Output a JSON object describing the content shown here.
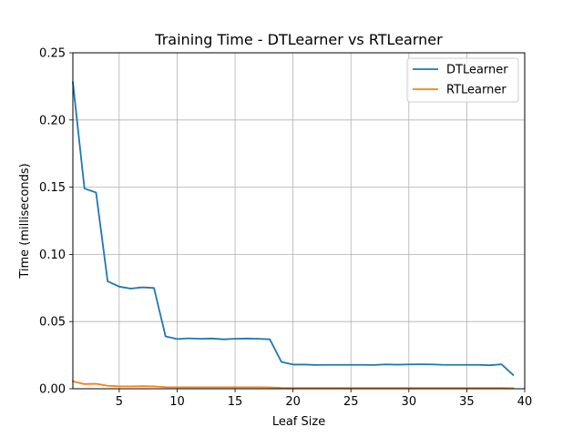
{
  "chart_data": {
    "type": "line",
    "title": "Training Time - DTLearner vs RTLearner",
    "xlabel": "Leaf Size",
    "ylabel": "Time (milliseconds)",
    "xlim": [
      1,
      40
    ],
    "ylim": [
      0,
      0.25
    ],
    "xticks": [
      5,
      10,
      15,
      20,
      25,
      30,
      35,
      40
    ],
    "yticks": [
      0.0,
      0.05,
      0.1,
      0.15,
      0.2,
      0.25
    ],
    "xtick_labels": [
      "5",
      "10",
      "15",
      "20",
      "25",
      "30",
      "35",
      "40"
    ],
    "ytick_labels": [
      "0.00",
      "0.05",
      "0.10",
      "0.15",
      "0.20",
      "0.25"
    ],
    "grid": true,
    "legend_position": "top-right",
    "x": [
      1,
      2,
      3,
      4,
      5,
      6,
      7,
      8,
      9,
      10,
      11,
      12,
      13,
      14,
      15,
      16,
      17,
      18,
      19,
      20,
      21,
      22,
      23,
      24,
      25,
      26,
      27,
      28,
      29,
      30,
      31,
      32,
      33,
      34,
      35,
      36,
      37,
      38,
      39
    ],
    "series": [
      {
        "name": "DTLearner",
        "color": "#1f77b4",
        "values": [
          0.228,
          0.149,
          0.146,
          0.08,
          0.076,
          0.0745,
          0.0755,
          0.075,
          0.039,
          0.037,
          0.0375,
          0.0372,
          0.0374,
          0.0368,
          0.0372,
          0.0374,
          0.0372,
          0.0368,
          0.02,
          0.018,
          0.018,
          0.0177,
          0.0178,
          0.0178,
          0.0178,
          0.0178,
          0.0177,
          0.0181,
          0.0179,
          0.0181,
          0.0182,
          0.0181,
          0.0178,
          0.0178,
          0.0178,
          0.0178,
          0.0175,
          0.0182,
          0.0103
        ]
      },
      {
        "name": "RTLearner",
        "color": "#ff7f0e",
        "values": [
          0.0055,
          0.0035,
          0.0037,
          0.0022,
          0.0018,
          0.0018,
          0.0019,
          0.0018,
          0.0012,
          0.0011,
          0.0011,
          0.0011,
          0.0011,
          0.0011,
          0.0011,
          0.0011,
          0.0011,
          0.001,
          0.0007,
          0.0006,
          0.0006,
          0.0006,
          0.0006,
          0.0006,
          0.0006,
          0.0006,
          0.0006,
          0.0006,
          0.0006,
          0.0006,
          0.0006,
          0.0006,
          0.0006,
          0.0006,
          0.0006,
          0.0006,
          0.0006,
          0.0006,
          0.0004
        ]
      }
    ]
  }
}
